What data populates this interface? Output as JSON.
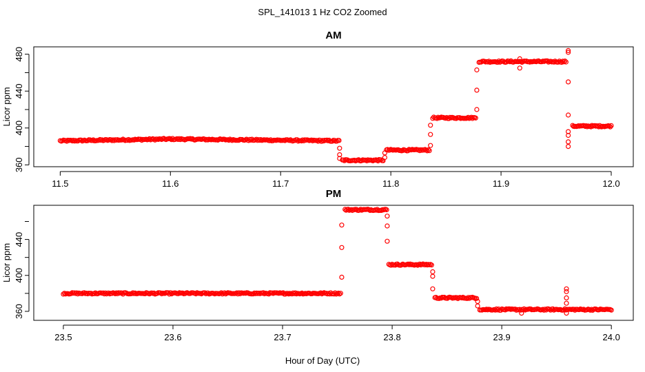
{
  "figure": {
    "title": "SPL_141013  1 Hz CO2 Zoomed",
    "xlabel": "Hour of Day (UTC)"
  },
  "colors": {
    "points": "#ff0000",
    "axes": "#000000",
    "background": "#ffffff"
  },
  "chart_data": [
    {
      "type": "scatter",
      "title": "AM",
      "xlabel": "",
      "ylabel": "Licor ppm",
      "xlim": [
        11.476,
        12.02
      ],
      "ylim": [
        358,
        488
      ],
      "xticks": [
        11.5,
        11.6,
        11.7,
        11.8,
        11.9,
        12.0
      ],
      "xtick_labels": [
        "11.5",
        "11.6",
        "11.7",
        "11.8",
        "11.9",
        "12.0"
      ],
      "yticks": [
        360,
        400,
        440,
        480
      ],
      "ytick_labels": [
        "360",
        "400",
        "440",
        "480"
      ],
      "marker": "open-circle",
      "segments": [
        {
          "x": [
            11.5,
            11.6
          ],
          "y": [
            386,
            388
          ]
        },
        {
          "x": [
            11.6,
            11.753
          ],
          "y": [
            388,
            386
          ]
        },
        {
          "x": [
            11.756,
            11.793
          ],
          "y": [
            365,
            365
          ]
        },
        {
          "x": [
            11.796,
            11.835
          ],
          "y": [
            376,
            376
          ]
        },
        {
          "x": [
            11.838,
            11.877
          ],
          "y": [
            411,
            411
          ]
        },
        {
          "x": [
            11.88,
            11.959
          ],
          "y": [
            472,
            472
          ]
        },
        {
          "x": [
            11.965,
            12.0
          ],
          "y": [
            402,
            402
          ]
        }
      ],
      "transitions": [
        {
          "x": 11.7535,
          "y": [
            378,
            371,
            367
          ]
        },
        {
          "x": 11.7945,
          "y": [
            368,
            373
          ]
        },
        {
          "x": 11.836,
          "y": [
            381,
            393,
            403
          ]
        },
        {
          "x": 11.878,
          "y": [
            420,
            441,
            463
          ]
        },
        {
          "x": 11.917,
          "y": [
            465,
            475
          ]
        },
        {
          "x": 11.961,
          "y": [
            484,
            482,
            450,
            414,
            385,
            380,
            392,
            396
          ]
        }
      ]
    },
    {
      "type": "scatter",
      "title": "PM",
      "xlabel": "Hour of Day (UTC)",
      "ylabel": "Licor ppm",
      "xlim": [
        23.473,
        24.02
      ],
      "ylim": [
        350,
        478
      ],
      "xticks": [
        23.5,
        23.6,
        23.7,
        23.8,
        23.9,
        24.0
      ],
      "xtick_labels": [
        "23.5",
        "23.6",
        "23.7",
        "23.8",
        "23.9",
        "24.0"
      ],
      "yticks": [
        360,
        400,
        440
      ],
      "ytick_labels": [
        "360",
        "400",
        "440"
      ],
      "marker": "open-circle",
      "segments": [
        {
          "x": [
            23.5,
            23.753
          ],
          "y": [
            380,
            380
          ]
        },
        {
          "x": [
            23.757,
            23.795
          ],
          "y": [
            473,
            473
          ]
        },
        {
          "x": [
            23.797,
            23.836
          ],
          "y": [
            412,
            412
          ]
        },
        {
          "x": [
            23.839,
            23.877
          ],
          "y": [
            375,
            375
          ]
        },
        {
          "x": [
            23.88,
            24.0
          ],
          "y": [
            362,
            362
          ]
        }
      ],
      "transitions": [
        {
          "x": 23.754,
          "y": [
            398,
            431,
            456
          ]
        },
        {
          "x": 23.7955,
          "y": [
            438,
            455,
            466
          ]
        },
        {
          "x": 23.837,
          "y": [
            399,
            404,
            385
          ]
        },
        {
          "x": 23.878,
          "y": [
            371,
            366
          ]
        },
        {
          "x": 23.918,
          "y": [
            358
          ]
        },
        {
          "x": 23.959,
          "y": [
            385,
            382,
            375,
            369,
            358
          ]
        }
      ]
    }
  ]
}
